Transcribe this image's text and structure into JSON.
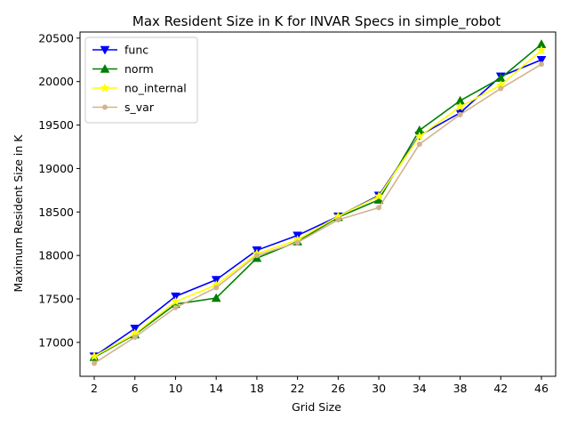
{
  "chart_data": {
    "type": "line",
    "title": "Max Resident Size in K for INVAR Specs in simple_robot",
    "xlabel": "Grid Size",
    "ylabel": "Maximum Resident Size in K",
    "x": [
      2,
      6,
      10,
      14,
      18,
      22,
      26,
      30,
      34,
      38,
      42,
      46
    ],
    "xticks": [
      2,
      6,
      10,
      14,
      18,
      22,
      26,
      30,
      34,
      38,
      42,
      46
    ],
    "yticks": [
      17000,
      17500,
      18000,
      18500,
      19000,
      19500,
      20000,
      20500
    ],
    "xlim": [
      0.6,
      47.4
    ],
    "ylim": [
      16610,
      20570
    ],
    "grid": false,
    "legend_position": "top-left",
    "series": [
      {
        "name": "func",
        "color": "#0000ff",
        "marker": "triangle-down",
        "values": [
          16840,
          17160,
          17530,
          17720,
          18060,
          18230,
          18450,
          18690,
          19380,
          19640,
          20060,
          20250
        ]
      },
      {
        "name": "norm",
        "color": "#008000",
        "marker": "triangle-up",
        "values": [
          16830,
          17090,
          17440,
          17510,
          17970,
          18160,
          18440,
          18640,
          19440,
          19780,
          20040,
          20430
        ]
      },
      {
        "name": "no_internal",
        "color": "#ffff00",
        "marker": "star",
        "values": [
          16840,
          17100,
          17470,
          17660,
          18020,
          18180,
          18450,
          18680,
          19370,
          19710,
          19960,
          20360
        ]
      },
      {
        "name": "s_var",
        "color": "#d2b48c",
        "marker": "circle",
        "values": [
          16760,
          17060,
          17400,
          17630,
          18000,
          18150,
          18410,
          18550,
          19280,
          19620,
          19920,
          20200
        ]
      }
    ]
  }
}
